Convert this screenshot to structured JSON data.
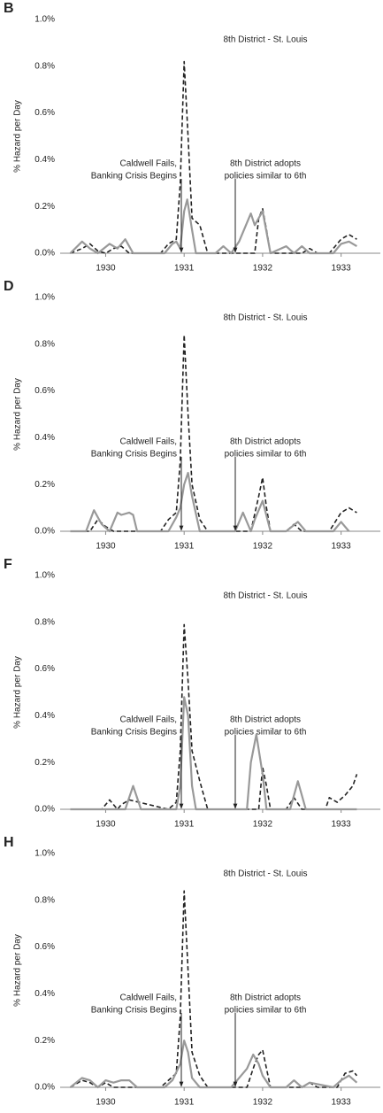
{
  "chart_data": [
    {
      "type": "line",
      "panel_label": "B",
      "title": "8th District - St. Louis",
      "ylabel": "% Hazard per Day",
      "annotations": [
        [
          "Caldwell Fails,",
          "Banking Crisis Begins"
        ],
        [
          "8th District adopts",
          "policies similar to 6th"
        ]
      ],
      "xlim": [
        1929.42,
        1933.5
      ],
      "xticks": [
        1930,
        1931,
        1932,
        1933
      ],
      "ylim": [
        0,
        1.0
      ],
      "yticks": [
        {
          "value": 0,
          "label": "0.0%"
        },
        {
          "value": 0.2,
          "label": "0.2%"
        },
        {
          "value": 0.4,
          "label": "0.4%"
        },
        {
          "value": 0.6,
          "label": "0.6%"
        },
        {
          "value": 0.8,
          "label": "0.8%"
        },
        {
          "value": 1.0,
          "label": "1.0%"
        }
      ],
      "grid": false,
      "series": [
        {
          "color": "#222222",
          "line_style": "dashed",
          "x": [
            1929.55,
            1929.7,
            1929.8,
            1929.9,
            1930.0,
            1930.1,
            1930.2,
            1930.3,
            1930.7,
            1930.8,
            1930.9,
            1930.95,
            1931.0,
            1931.05,
            1931.1,
            1931.2,
            1931.3,
            1931.9,
            1931.95,
            1932.0,
            1932.05,
            1932.1,
            1932.5,
            1932.6,
            1932.7,
            1932.85,
            1933.0,
            1933.1,
            1933.2
          ],
          "values": [
            0,
            0.02,
            0.04,
            0.01,
            0,
            0.02,
            0.03,
            0,
            0,
            0.04,
            0.06,
            0.3,
            0.82,
            0.5,
            0.15,
            0.12,
            0,
            0,
            0.15,
            0.19,
            0.1,
            0,
            0,
            0.02,
            0,
            0,
            0.06,
            0.08,
            0.06
          ]
        },
        {
          "color": "#999999",
          "line_style": "solid",
          "x": [
            1929.55,
            1929.7,
            1929.8,
            1929.9,
            1930.05,
            1930.15,
            1930.25,
            1930.35,
            1930.75,
            1930.85,
            1930.9,
            1930.95,
            1931.0,
            1931.04,
            1931.1,
            1931.15,
            1931.4,
            1931.5,
            1931.6,
            1931.7,
            1931.85,
            1931.9,
            1932.0,
            1932.1,
            1932.3,
            1932.4,
            1932.5,
            1932.6,
            1932.9,
            1933.0,
            1933.1,
            1933.2
          ],
          "values": [
            0,
            0.05,
            0.02,
            0,
            0.04,
            0.02,
            0.06,
            0,
            0,
            0.04,
            0.05,
            0.02,
            0.18,
            0.23,
            0.1,
            0,
            0,
            0.03,
            0,
            0.05,
            0.17,
            0.12,
            0.18,
            0,
            0.03,
            0,
            0.03,
            0,
            0,
            0.04,
            0.05,
            0.03
          ]
        }
      ]
    },
    {
      "type": "line",
      "panel_label": "D",
      "title": "8th District - St. Louis",
      "ylabel": "% Hazard per Day",
      "annotations": [
        [
          "Caldwell Fails,",
          "Banking Crisis Begins"
        ],
        [
          "8th District adopts",
          "policies similar to 6th"
        ]
      ],
      "xlim": [
        1929.42,
        1933.5
      ],
      "xticks": [
        1930,
        1931,
        1932,
        1933
      ],
      "ylim": [
        0,
        1.0
      ],
      "yticks": [
        {
          "value": 0,
          "label": "0.0%"
        },
        {
          "value": 0.2,
          "label": "0.2%"
        },
        {
          "value": 0.4,
          "label": "0.4%"
        },
        {
          "value": 0.6,
          "label": "0.6%"
        },
        {
          "value": 0.8,
          "label": "0.8%"
        },
        {
          "value": 1.0,
          "label": "1.0%"
        }
      ],
      "grid": false,
      "series": [
        {
          "color": "#222222",
          "line_style": "dashed",
          "x": [
            1929.55,
            1929.8,
            1929.9,
            1930.0,
            1930.1,
            1930.7,
            1930.8,
            1930.9,
            1930.95,
            1931.0,
            1931.05,
            1931.1,
            1931.2,
            1931.3,
            1931.85,
            1931.95,
            1932.0,
            1932.05,
            1932.1,
            1932.3,
            1932.4,
            1932.5,
            1932.85,
            1933.0,
            1933.1,
            1933.2
          ],
          "values": [
            0,
            0,
            0.05,
            0.02,
            0,
            0,
            0.05,
            0.08,
            0.3,
            0.84,
            0.5,
            0.2,
            0.05,
            0,
            0,
            0.15,
            0.23,
            0.1,
            0,
            0,
            0.03,
            0,
            0,
            0.08,
            0.1,
            0.08
          ]
        },
        {
          "color": "#999999",
          "line_style": "solid",
          "x": [
            1929.55,
            1929.75,
            1929.85,
            1929.95,
            1930.05,
            1930.15,
            1930.2,
            1930.3,
            1930.35,
            1930.4,
            1930.8,
            1930.9,
            1930.95,
            1931.0,
            1931.05,
            1931.1,
            1931.2,
            1931.65,
            1931.75,
            1931.85,
            1931.9,
            1932.0,
            1932.1,
            1932.3,
            1932.45,
            1932.55,
            1932.9,
            1933.0,
            1933.1
          ],
          "values": [
            0,
            0,
            0.09,
            0.03,
            0,
            0.08,
            0.07,
            0.08,
            0.07,
            0,
            0,
            0.06,
            0.1,
            0.2,
            0.25,
            0.15,
            0,
            0,
            0.08,
            0,
            0.05,
            0.13,
            0,
            0,
            0.04,
            0,
            0,
            0.04,
            0
          ]
        }
      ]
    },
    {
      "type": "line",
      "panel_label": "F",
      "title": "8th District - St. Louis",
      "ylabel": "% Hazard per Day",
      "annotations": [
        [
          "Caldwell Fails,",
          "Banking Crisis Begins"
        ],
        [
          "8th District adopts",
          "policies similar to 6th"
        ]
      ],
      "xlim": [
        1929.42,
        1933.5
      ],
      "xticks": [
        1930,
        1931,
        1932,
        1933
      ],
      "ylim": [
        0,
        1.0
      ],
      "yticks": [
        {
          "value": 0,
          "label": "0.0%"
        },
        {
          "value": 0.2,
          "label": "0.2%"
        },
        {
          "value": 0.4,
          "label": "0.4%"
        },
        {
          "value": 0.6,
          "label": "0.6%"
        },
        {
          "value": 0.8,
          "label": "0.8%"
        },
        {
          "value": 1.0,
          "label": "1.0%"
        }
      ],
      "grid": false,
      "series": [
        {
          "color": "#222222",
          "line_style": "dashed",
          "x": [
            1929.55,
            1929.95,
            1930.05,
            1930.15,
            1930.2,
            1930.3,
            1930.8,
            1930.9,
            1930.95,
            1931.0,
            1931.05,
            1931.1,
            1931.2,
            1931.3,
            1931.95,
            1932.0,
            1932.05,
            1932.1,
            1932.3,
            1932.4,
            1932.5,
            1932.8,
            1932.85,
            1932.95,
            1933.05,
            1933.15,
            1933.2
          ],
          "values": [
            0,
            0,
            0.04,
            0,
            0.02,
            0.04,
            0,
            0.03,
            0.25,
            0.79,
            0.55,
            0.25,
            0.12,
            0,
            0,
            0.18,
            0.1,
            0,
            0,
            0.05,
            0,
            0,
            0.05,
            0.03,
            0.06,
            0.1,
            0.15
          ]
        },
        {
          "color": "#999999",
          "line_style": "solid",
          "x": [
            1929.55,
            1930.25,
            1930.35,
            1930.45,
            1930.9,
            1930.95,
            1931.0,
            1931.05,
            1931.1,
            1931.15,
            1931.8,
            1931.85,
            1931.92,
            1932.0,
            1932.05,
            1932.35,
            1932.45,
            1932.55,
            1933.1,
            1933.2
          ],
          "values": [
            0,
            0,
            0.1,
            0,
            0,
            0.1,
            0.48,
            0.4,
            0.1,
            0,
            0,
            0.2,
            0.32,
            0.15,
            0,
            0,
            0.12,
            0,
            0,
            0
          ]
        }
      ]
    },
    {
      "type": "line",
      "panel_label": "H",
      "title": "8th District - St. Louis",
      "ylabel": "% Hazard per Day",
      "annotations": [
        [
          "Caldwell Fails,",
          "Banking Crisis Begins"
        ],
        [
          "8th District adopts",
          "policies similar to 6th"
        ]
      ],
      "xlim": [
        1929.42,
        1933.5
      ],
      "xticks": [
        1930,
        1931,
        1932,
        1933
      ],
      "ylim": [
        0,
        1.0
      ],
      "yticks": [
        {
          "value": 0,
          "label": "0.0%"
        },
        {
          "value": 0.2,
          "label": "0.2%"
        },
        {
          "value": 0.4,
          "label": "0.4%"
        },
        {
          "value": 0.6,
          "label": "0.6%"
        },
        {
          "value": 0.8,
          "label": "0.8%"
        },
        {
          "value": 1.0,
          "label": "1.0%"
        }
      ],
      "grid": false,
      "series": [
        {
          "color": "#222222",
          "line_style": "dashed",
          "x": [
            1929.55,
            1929.7,
            1929.8,
            1929.9,
            1930.0,
            1930.1,
            1930.7,
            1930.8,
            1930.9,
            1930.95,
            1931.0,
            1931.05,
            1931.1,
            1931.2,
            1931.3,
            1931.8,
            1931.9,
            1931.95,
            1932.0,
            1932.05,
            1932.1,
            1932.5,
            1932.6,
            1932.7,
            1932.95,
            1933.05,
            1933.15,
            1933.2
          ],
          "values": [
            0,
            0.03,
            0.02,
            0,
            0.02,
            0,
            0,
            0.03,
            0.06,
            0.3,
            0.84,
            0.5,
            0.15,
            0.05,
            0,
            0,
            0.1,
            0.14,
            0.16,
            0.08,
            0,
            0,
            0.02,
            0,
            0,
            0.06,
            0.07,
            0.05
          ]
        },
        {
          "color": "#999999",
          "line_style": "solid",
          "x": [
            1929.55,
            1929.7,
            1929.8,
            1929.9,
            1930.0,
            1930.1,
            1930.2,
            1930.3,
            1930.4,
            1930.75,
            1930.85,
            1930.95,
            1931.0,
            1931.05,
            1931.1,
            1931.2,
            1931.6,
            1931.7,
            1931.8,
            1931.88,
            1931.95,
            1932.0,
            1932.1,
            1932.3,
            1932.4,
            1932.5,
            1932.6,
            1932.9,
            1933.0,
            1933.1,
            1933.2
          ],
          "values": [
            0,
            0.04,
            0.03,
            0,
            0.03,
            0.02,
            0.03,
            0.03,
            0,
            0,
            0.03,
            0.1,
            0.2,
            0.15,
            0.04,
            0,
            0,
            0.04,
            0.08,
            0.14,
            0.1,
            0.05,
            0,
            0,
            0.03,
            0,
            0.02,
            0,
            0.03,
            0.05,
            0.02
          ]
        }
      ]
    }
  ]
}
